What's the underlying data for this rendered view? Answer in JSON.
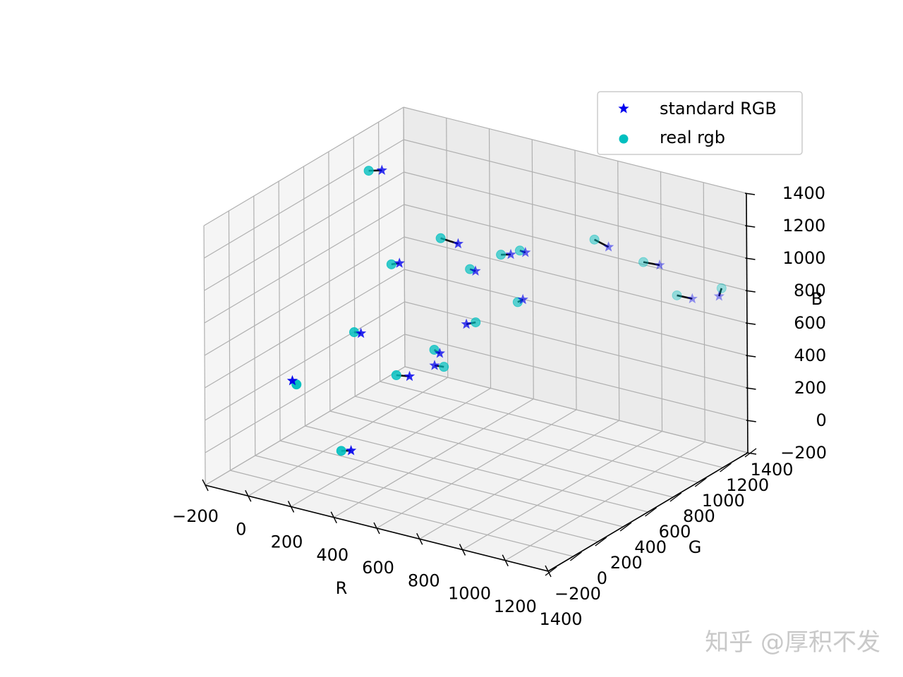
{
  "chart_data": {
    "type": "scatter",
    "projection": "3d",
    "title": "",
    "xlabel": "R",
    "ylabel": "G",
    "zlabel": "B",
    "xlim": [
      -200,
      1400
    ],
    "ylim": [
      -200,
      1400
    ],
    "zlim": [
      -200,
      1400
    ],
    "grid": true,
    "x_ticks": [
      "−200",
      "0",
      "200",
      "400",
      "600",
      "800",
      "1000",
      "1200",
      "1400"
    ],
    "y_ticks": [
      "−200",
      "0",
      "200",
      "400",
      "600",
      "800",
      "1000",
      "1200",
      "1400"
    ],
    "z_ticks": [
      "−200",
      "0",
      "200",
      "400",
      "600",
      "800",
      "1000",
      "1200",
      "1400"
    ],
    "legend": {
      "position": "top-right",
      "entries": [
        {
          "label": "standard RGB",
          "marker": "star",
          "color": "#0000ee"
        },
        {
          "label": "real rgb",
          "marker": "circle",
          "color": "#00bfbf"
        }
      ]
    },
    "series": [
      {
        "name": "standard RGB",
        "marker": "star",
        "color": "#0000ee",
        "points": [
          [
            60,
            780,
            1380
          ],
          [
            330,
            60,
            70
          ],
          [
            75,
            30,
            430
          ],
          [
            430,
            560,
            400
          ],
          [
            280,
            540,
            990
          ],
          [
            600,
            600,
            1020
          ],
          [
            660,
            780,
            1060
          ],
          [
            850,
            550,
            950
          ],
          [
            670,
            880,
            1030
          ],
          [
            930,
            1100,
            1050
          ],
          [
            590,
            480,
            1240
          ],
          [
            720,
            320,
            860
          ],
          [
            1180,
            1080,
            1030
          ],
          [
            1320,
            1100,
            860
          ],
          [
            1340,
            1280,
            800
          ],
          [
            570,
            120,
            580
          ],
          [
            110,
            520,
            510
          ],
          [
            560,
            380,
            600
          ]
        ]
      },
      {
        "name": "real rgb",
        "marker": "circle",
        "color": "#00bfbf",
        "points": [
          [
            10,
            760,
            1370
          ],
          [
            290,
            50,
            60
          ],
          [
            100,
            20,
            420
          ],
          [
            450,
            600,
            380
          ],
          [
            260,
            510,
            990
          ],
          [
            580,
            590,
            1030
          ],
          [
            620,
            770,
            1050
          ],
          [
            820,
            560,
            920
          ],
          [
            650,
            870,
            1040
          ],
          [
            870,
            1090,
            1080
          ],
          [
            520,
            460,
            1260
          ],
          [
            740,
            360,
            860
          ],
          [
            1110,
            1070,
            1030
          ],
          [
            1260,
            1080,
            870
          ],
          [
            1340,
            1300,
            840
          ],
          [
            520,
            100,
            580
          ],
          [
            90,
            500,
            520
          ],
          [
            540,
            370,
            620
          ]
        ]
      }
    ]
  },
  "watermark": "知乎 @厚积不发"
}
